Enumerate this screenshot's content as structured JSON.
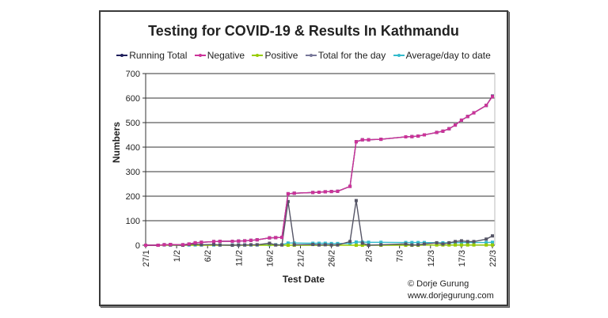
{
  "chart_data": {
    "type": "line",
    "title": "Testing for COVID-19 & Results In Kathmandu",
    "xlabel": "Test Date",
    "ylabel": "Numbers",
    "ylim": [
      0,
      700
    ],
    "yticks": [
      0,
      100,
      200,
      300,
      400,
      500,
      600,
      700
    ],
    "xticks": [
      "27/1",
      "1/2",
      "6/2",
      "11/2",
      "16/2",
      "21/2",
      "26/2",
      "2/3",
      "7/3",
      "12/3",
      "17/3",
      "22/3"
    ],
    "grid": "horizontal",
    "legend_position": "top",
    "credit": [
      "© Dorje Gurung",
      "www.dorjegurung.com"
    ],
    "x_day_offset_note": "day index 0 = 27/1",
    "series": [
      {
        "name": "Running Total",
        "color": "#1f1f5c",
        "points": [
          [
            0,
            0
          ],
          [
            2,
            0
          ],
          [
            3,
            2
          ],
          [
            4,
            3
          ],
          [
            6,
            2
          ],
          [
            7,
            5
          ],
          [
            8,
            10
          ],
          [
            9,
            12
          ],
          [
            11,
            15
          ],
          [
            12,
            16
          ],
          [
            14,
            16
          ],
          [
            15,
            17
          ],
          [
            16,
            18
          ],
          [
            17,
            20
          ],
          [
            18,
            22
          ],
          [
            20,
            30
          ],
          [
            21,
            31
          ],
          [
            22,
            32
          ],
          [
            23,
            210
          ],
          [
            24,
            212
          ],
          [
            27,
            215
          ],
          [
            28,
            216
          ],
          [
            29,
            218
          ],
          [
            30,
            219
          ],
          [
            31,
            220
          ],
          [
            33,
            240
          ],
          [
            34,
            422
          ],
          [
            35,
            430
          ],
          [
            36,
            430
          ],
          [
            38,
            432
          ],
          [
            42,
            442
          ],
          [
            43,
            443
          ],
          [
            44,
            445
          ],
          [
            45,
            450
          ],
          [
            47,
            460
          ],
          [
            48,
            465
          ],
          [
            49,
            475
          ],
          [
            50,
            490
          ],
          [
            51,
            510
          ],
          [
            52,
            525
          ],
          [
            53,
            540
          ],
          [
            55,
            570
          ],
          [
            56,
            608
          ]
        ]
      },
      {
        "name": "Negative",
        "color": "#cc3399",
        "points": [
          [
            0,
            0
          ],
          [
            2,
            0
          ],
          [
            3,
            2
          ],
          [
            4,
            3
          ],
          [
            6,
            2
          ],
          [
            7,
            5
          ],
          [
            8,
            10
          ],
          [
            9,
            12
          ],
          [
            11,
            15
          ],
          [
            12,
            16
          ],
          [
            14,
            16
          ],
          [
            15,
            17
          ],
          [
            16,
            18
          ],
          [
            17,
            20
          ],
          [
            18,
            22
          ],
          [
            20,
            30
          ],
          [
            21,
            31
          ],
          [
            22,
            32
          ],
          [
            23,
            210
          ],
          [
            24,
            212
          ],
          [
            27,
            215
          ],
          [
            28,
            216
          ],
          [
            29,
            218
          ],
          [
            30,
            219
          ],
          [
            31,
            220
          ],
          [
            33,
            240
          ],
          [
            34,
            422
          ],
          [
            35,
            430
          ],
          [
            36,
            430
          ],
          [
            38,
            432
          ],
          [
            42,
            442
          ],
          [
            43,
            443
          ],
          [
            44,
            445
          ],
          [
            45,
            450
          ],
          [
            47,
            460
          ],
          [
            48,
            465
          ],
          [
            49,
            475
          ],
          [
            50,
            490
          ],
          [
            51,
            510
          ],
          [
            52,
            525
          ],
          [
            53,
            540
          ],
          [
            55,
            570
          ],
          [
            56,
            606
          ]
        ]
      },
      {
        "name": "Positive",
        "color": "#99cc00",
        "points": [
          [
            0,
            0
          ],
          [
            23,
            0
          ],
          [
            24,
            0
          ],
          [
            34,
            0
          ],
          [
            35,
            0
          ],
          [
            36,
            0
          ],
          [
            38,
            0
          ],
          [
            42,
            0
          ],
          [
            43,
            0
          ],
          [
            44,
            0
          ],
          [
            47,
            1
          ],
          [
            48,
            1
          ],
          [
            49,
            1
          ],
          [
            50,
            1
          ],
          [
            51,
            1
          ],
          [
            52,
            1
          ],
          [
            53,
            1
          ],
          [
            55,
            1
          ],
          [
            56,
            1
          ]
        ]
      },
      {
        "name": "Total for the day",
        "color": "#555566",
        "points": [
          [
            0,
            0
          ],
          [
            2,
            0
          ],
          [
            3,
            2
          ],
          [
            4,
            1
          ],
          [
            6,
            0
          ],
          [
            7,
            3
          ],
          [
            8,
            5
          ],
          [
            9,
            2
          ],
          [
            11,
            3
          ],
          [
            12,
            1
          ],
          [
            14,
            0
          ],
          [
            15,
            1
          ],
          [
            16,
            1
          ],
          [
            17,
            2
          ],
          [
            18,
            2
          ],
          [
            20,
            8
          ],
          [
            21,
            1
          ],
          [
            22,
            1
          ],
          [
            23,
            178
          ],
          [
            24,
            2
          ],
          [
            27,
            3
          ],
          [
            28,
            1
          ],
          [
            29,
            2
          ],
          [
            30,
            1
          ],
          [
            31,
            1
          ],
          [
            33,
            15
          ],
          [
            34,
            182
          ],
          [
            35,
            8
          ],
          [
            36,
            0
          ],
          [
            38,
            2
          ],
          [
            42,
            5
          ],
          [
            43,
            1
          ],
          [
            44,
            2
          ],
          [
            45,
            5
          ],
          [
            47,
            10
          ],
          [
            48,
            5
          ],
          [
            49,
            10
          ],
          [
            50,
            15
          ],
          [
            51,
            18
          ],
          [
            52,
            15
          ],
          [
            53,
            15
          ],
          [
            55,
            25
          ],
          [
            56,
            38
          ]
        ]
      },
      {
        "name": "Average/day to date",
        "color": "#33bbcc",
        "points": [
          [
            0,
            0
          ],
          [
            2,
            0
          ],
          [
            3,
            1
          ],
          [
            4,
            1
          ],
          [
            6,
            0
          ],
          [
            7,
            1
          ],
          [
            8,
            1
          ],
          [
            9,
            1
          ],
          [
            11,
            1
          ],
          [
            12,
            1
          ],
          [
            14,
            1
          ],
          [
            15,
            1
          ],
          [
            16,
            1
          ],
          [
            17,
            1
          ],
          [
            18,
            1
          ],
          [
            20,
            2
          ],
          [
            21,
            2
          ],
          [
            22,
            2
          ],
          [
            23,
            9
          ],
          [
            24,
            9
          ],
          [
            27,
            8
          ],
          [
            28,
            8
          ],
          [
            29,
            8
          ],
          [
            30,
            7
          ],
          [
            31,
            7
          ],
          [
            33,
            7
          ],
          [
            34,
            13
          ],
          [
            35,
            13
          ],
          [
            36,
            12
          ],
          [
            38,
            12
          ],
          [
            42,
            11
          ],
          [
            43,
            11
          ],
          [
            44,
            11
          ],
          [
            45,
            11
          ],
          [
            47,
            10
          ],
          [
            48,
            10
          ],
          [
            49,
            10
          ],
          [
            50,
            10
          ],
          [
            51,
            11
          ],
          [
            52,
            11
          ],
          [
            53,
            11
          ],
          [
            55,
            11
          ],
          [
            56,
            12
          ]
        ]
      }
    ]
  },
  "labels": {
    "title": "Testing for COVID-19 & Results In Kathmandu",
    "xlabel": "Test Date",
    "ylabel": "Numbers",
    "credit_line1": "© Dorje Gurung",
    "credit_line2": "www.dorjegurung.com",
    "legend": [
      "Running Total",
      "Negative",
      "Positive",
      "Total for the day",
      "Average/day to date"
    ]
  }
}
